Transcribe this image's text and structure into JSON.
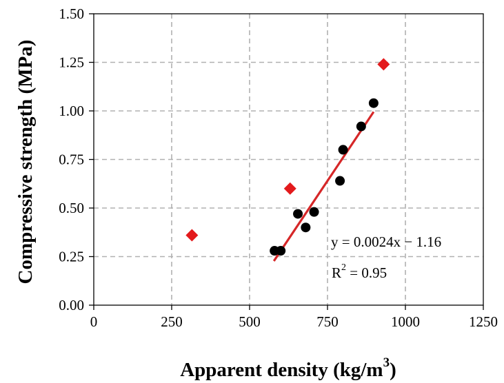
{
  "chart_data": {
    "type": "scatter",
    "xlabel": "Apparent density (kg/m",
    "xlabel_sup": "3",
    "xlabel_end": ")",
    "ylabel": "Compressive strength (MPa)",
    "xlim": [
      0,
      1250
    ],
    "ylim": [
      0,
      1.5
    ],
    "xticks": [
      0,
      250,
      500,
      750,
      1000,
      1250
    ],
    "yticks": [
      0.0,
      0.25,
      0.5,
      0.75,
      1.0,
      1.25,
      1.5
    ],
    "xtick_labels": [
      "0",
      "250",
      "500",
      "750",
      "1000",
      "1250"
    ],
    "ytick_labels": [
      "0.00",
      "0.25",
      "0.50",
      "0.75",
      "1.00",
      "1.25",
      "1.50"
    ],
    "grid": true,
    "series": [
      {
        "marker": "circle",
        "color": "#000000",
        "points": [
          {
            "x": 580,
            "y": 0.28
          },
          {
            "x": 600,
            "y": 0.28
          },
          {
            "x": 655,
            "y": 0.47
          },
          {
            "x": 680,
            "y": 0.4
          },
          {
            "x": 707,
            "y": 0.48
          },
          {
            "x": 790,
            "y": 0.64
          },
          {
            "x": 800,
            "y": 0.8
          },
          {
            "x": 858,
            "y": 0.92
          },
          {
            "x": 898,
            "y": 1.04
          }
        ]
      },
      {
        "marker": "diamond",
        "color": "#e31a1c",
        "points": [
          {
            "x": 315,
            "y": 0.36
          },
          {
            "x": 630,
            "y": 0.6
          },
          {
            "x": 930,
            "y": 1.24
          }
        ]
      }
    ],
    "fit_line": {
      "color": "#d62728",
      "slope": 0.0024,
      "intercept": -1.16,
      "x_range": [
        578,
        898
      ]
    },
    "annotations": {
      "equation": "y = 0.0024x − 1.16",
      "r2_prefix": "R",
      "r2_sup": "2",
      "r2_suffix": " = 0.95"
    }
  }
}
